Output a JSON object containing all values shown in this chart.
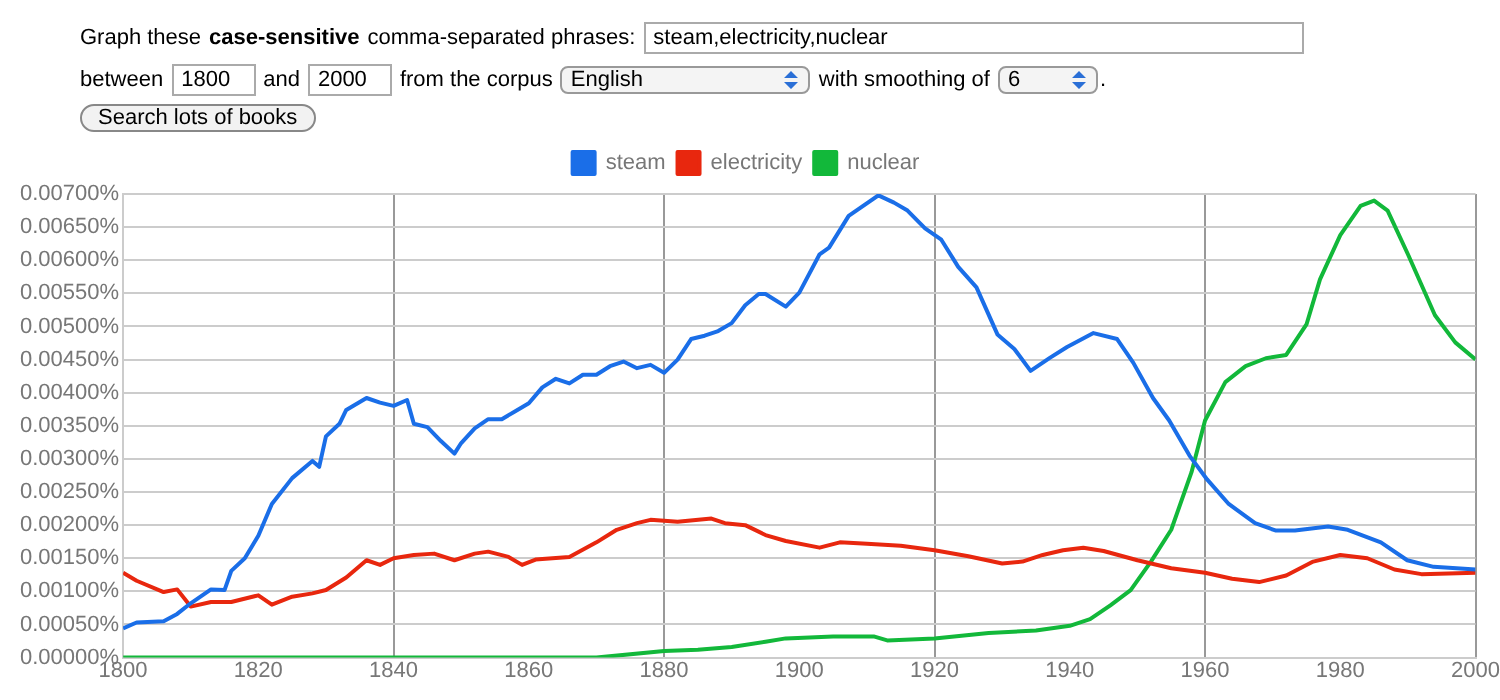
{
  "chart_data": {
    "type": "line",
    "marker": "none",
    "legend": "top",
    "grid": true,
    "annotations": [
      "Graph these",
      "case-sensitive",
      "comma-separated phrases:",
      "steam,electricity,nuclear",
      "between",
      "1800",
      "and",
      "2000",
      "from the corpus",
      "English",
      "with smoothing of",
      "6",
      ".",
      "Search lots of books"
    ],
    "xlim": [
      1800,
      2000
    ],
    "xticks": [
      1800,
      1820,
      1840,
      1860,
      1880,
      1900,
      1920,
      1940,
      1960,
      1980,
      2000
    ],
    "ylim": [
      0,
      0.007
    ],
    "yticks": [
      {
        "value": 0,
        "label": "0.00000%"
      },
      {
        "value": 0.0005,
        "label": "0.00050%"
      },
      {
        "value": 0.001,
        "label": "0.00100%"
      },
      {
        "value": 0.0015,
        "label": "0.00150%"
      },
      {
        "value": 0.002,
        "label": "0.00200%"
      },
      {
        "value": 0.0025,
        "label": "0.00250%"
      },
      {
        "value": 0.003,
        "label": "0.00300%"
      },
      {
        "value": 0.0035,
        "label": "0.00350%"
      },
      {
        "value": 0.004,
        "label": "0.00400%"
      },
      {
        "value": 0.0045,
        "label": "0.00450%"
      },
      {
        "value": 0.005,
        "label": "0.00500%"
      },
      {
        "value": 0.0055,
        "label": "0.00550%"
      },
      {
        "value": 0.006,
        "label": "0.00600%"
      },
      {
        "value": 0.0065,
        "label": "0.00650%"
      },
      {
        "value": 0.007,
        "label": "0.00700%"
      }
    ],
    "series": [
      {
        "name": "steam",
        "color": "#1a6ee8",
        "x": [
          1800,
          1802,
          1806,
          1808,
          1810,
          1813,
          1815,
          1816,
          1818,
          1820,
          1822,
          1825,
          1828,
          1829,
          1830,
          1832,
          1833,
          1836,
          1838,
          1840,
          1842,
          1843,
          1845,
          1847,
          1849,
          1850,
          1852,
          1854,
          1856,
          1858,
          1860,
          1862,
          1864,
          1866,
          1868,
          1870,
          1872,
          1874,
          1876,
          1878,
          1880,
          1882,
          1884,
          1886,
          1888,
          1890,
          1892,
          1894,
          1895,
          1898,
          1900,
          1903,
          1904.4,
          1907.3,
          1911.7,
          1914,
          1916,
          1918.6,
          1921,
          1923.5,
          1926.2,
          1929.3,
          1931.8,
          1934.2,
          1937.1,
          1939.6,
          1943.5,
          1947,
          1949.4,
          1952.3,
          1954.7,
          1957.7,
          1960.3,
          1963.5,
          1967.4,
          1970.4,
          1973.3,
          1978.2,
          1981.1,
          1986,
          1989.9,
          1993.8,
          2000
        ],
        "values": [
          0.00044,
          0.00053,
          0.00055,
          0.00066,
          0.00082,
          0.00103,
          0.00102,
          0.00131,
          0.0015,
          0.00184,
          0.00232,
          0.00271,
          0.00297,
          0.00288,
          0.00334,
          0.00353,
          0.00374,
          0.00392,
          0.00385,
          0.0038,
          0.00389,
          0.00353,
          0.00348,
          0.00327,
          0.00308,
          0.00324,
          0.00346,
          0.0036,
          0.0036,
          0.00372,
          0.00384,
          0.00408,
          0.00421,
          0.00414,
          0.00427,
          0.00427,
          0.0044,
          0.00447,
          0.00437,
          0.00442,
          0.0043,
          0.0045,
          0.00481,
          0.00486,
          0.00493,
          0.00505,
          0.00532,
          0.00549,
          0.00549,
          0.0053,
          0.00551,
          0.00609,
          0.00619,
          0.00667,
          0.00698,
          0.00687,
          0.00675,
          0.00648,
          0.00631,
          0.0059,
          0.00559,
          0.00488,
          0.00466,
          0.00433,
          0.00453,
          0.00469,
          0.0049,
          0.00481,
          0.00445,
          0.00392,
          0.00358,
          0.00305,
          0.00269,
          0.00232,
          0.00203,
          0.00192,
          0.00192,
          0.00198,
          0.00193,
          0.00174,
          0.00147,
          0.00137,
          0.00133
        ]
      },
      {
        "name": "electricity",
        "color": "#e8270e",
        "x": [
          1800,
          1802,
          1806,
          1808,
          1810,
          1813,
          1816,
          1820,
          1822,
          1825,
          1828,
          1830,
          1833,
          1836,
          1838,
          1840,
          1843,
          1846,
          1849,
          1852,
          1854,
          1857,
          1859,
          1861,
          1866,
          1870,
          1873,
          1876,
          1878,
          1882,
          1887,
          1889,
          1892,
          1895,
          1898,
          1903,
          1906,
          1910,
          1915,
          1920,
          1925,
          1930,
          1933,
          1936,
          1939,
          1942,
          1945,
          1950,
          1955,
          1960,
          1964,
          1968,
          1972,
          1976,
          1980,
          1984,
          1988,
          1992,
          2000
        ],
        "values": [
          0.00128,
          0.00116,
          0.00099,
          0.00103,
          0.00077,
          0.00084,
          0.00084,
          0.00094,
          0.0008,
          0.00092,
          0.00097,
          0.00102,
          0.00121,
          0.00147,
          0.0014,
          0.0015,
          0.00155,
          0.00157,
          0.00147,
          0.00157,
          0.0016,
          0.00152,
          0.0014,
          0.00148,
          0.00152,
          0.00174,
          0.00193,
          0.00203,
          0.00208,
          0.00205,
          0.0021,
          0.00203,
          0.002,
          0.00185,
          0.00176,
          0.00166,
          0.00174,
          0.00172,
          0.00169,
          0.00162,
          0.00153,
          0.00142,
          0.00145,
          0.00155,
          0.00162,
          0.00166,
          0.00161,
          0.00147,
          0.00135,
          0.00128,
          0.00119,
          0.00114,
          0.00124,
          0.00145,
          0.00155,
          0.0015,
          0.00133,
          0.00126,
          0.00128
        ]
      },
      {
        "name": "nuclear",
        "color": "#12b83a",
        "x": [
          1800,
          1860,
          1870,
          1880,
          1885,
          1890,
          1895,
          1898,
          1905,
          1911,
          1913,
          1920,
          1928,
          1935,
          1940,
          1943,
          1946,
          1949,
          1952,
          1955,
          1958,
          1960,
          1963,
          1966,
          1969,
          1972,
          1975,
          1977,
          1980,
          1983,
          1985,
          1987,
          1990,
          1994,
          1997,
          2000
        ],
        "values": [
          0,
          0,
          0,
          0.0001,
          0.00012,
          0.00016,
          0.00024,
          0.00029,
          0.00032,
          0.00032,
          0.00026,
          0.00029,
          0.00037,
          0.00041,
          0.00048,
          0.00058,
          0.00079,
          0.00102,
          0.00145,
          0.00193,
          0.0028,
          0.00358,
          0.00416,
          0.0044,
          0.00452,
          0.00457,
          0.00503,
          0.00571,
          0.00638,
          0.00682,
          0.0069,
          0.00675,
          0.00609,
          0.00517,
          0.00476,
          0.0045
        ]
      }
    ]
  }
}
